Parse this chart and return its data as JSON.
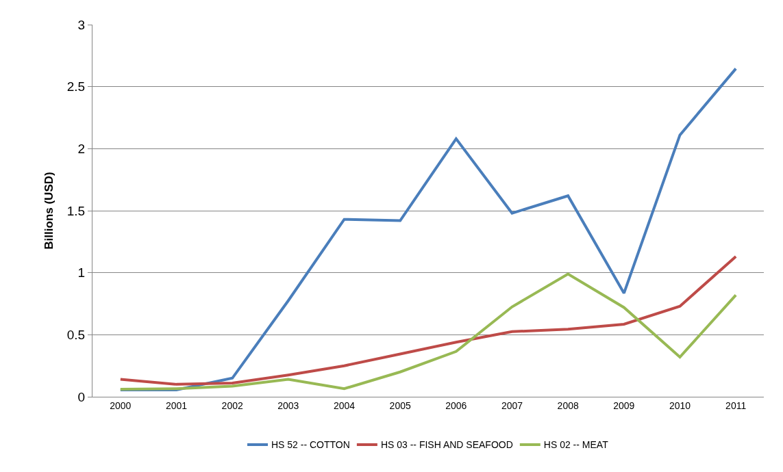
{
  "chart_data": {
    "type": "line",
    "ylabel": "Billions (USD)",
    "categories": [
      "2000",
      "2001",
      "2002",
      "2003",
      "2004",
      "2005",
      "2006",
      "2007",
      "2008",
      "2009",
      "2010",
      "2011"
    ],
    "series": [
      {
        "name": "HS 52 -- COTTON",
        "color": "#4a7ebb",
        "values": [
          0.055,
          0.055,
          0.15,
          0.775,
          1.43,
          1.42,
          2.08,
          1.48,
          1.62,
          0.835,
          2.11,
          2.645
        ]
      },
      {
        "name": "HS 03 -- FISH AND SEAFOOD",
        "color": "#be4b48",
        "values": [
          0.14,
          0.1,
          0.11,
          0.175,
          0.25,
          0.345,
          0.44,
          0.525,
          0.545,
          0.585,
          0.73,
          1.13
        ]
      },
      {
        "name": "HS 02 -- MEAT",
        "color": "#98b954",
        "values": [
          0.06,
          0.065,
          0.085,
          0.14,
          0.065,
          0.2,
          0.365,
          0.725,
          0.99,
          0.72,
          0.32,
          0.82
        ]
      }
    ],
    "ylim": [
      0,
      3
    ],
    "yticks": [
      0,
      0.5,
      1,
      1.5,
      2,
      2.5,
      3
    ],
    "grid": "y",
    "legend": "bottom",
    "marker": "none",
    "line_style": "solid"
  }
}
